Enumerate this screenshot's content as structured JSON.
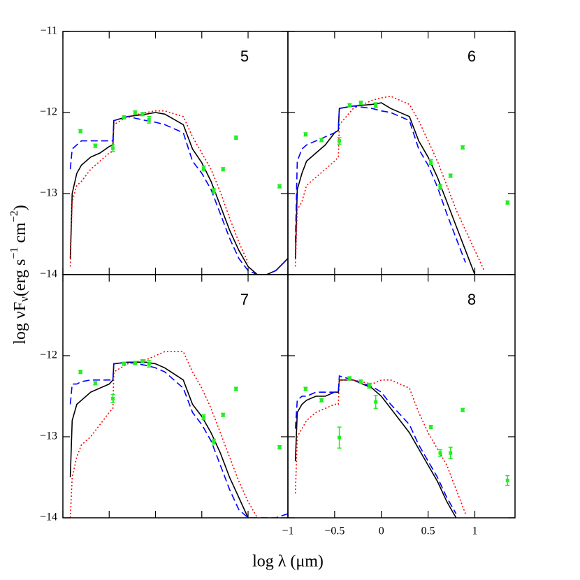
{
  "xlabel": "log λ (μm)",
  "ylabel": [
    "log νF",
    "ν",
    "(erg s",
    "−1",
    " cm",
    "−2",
    ")"
  ],
  "chart_data": [
    {
      "type": "line",
      "label": "5",
      "xlim": [
        -1,
        1.43
      ],
      "ylim": [
        -14,
        -11
      ],
      "xticks": [
        -1,
        -0.5,
        0,
        0.5,
        1
      ],
      "show_xtick_labels": false,
      "show_ytick_labels": true,
      "yticks": [
        {
          "value": -11,
          "label": "−11"
        },
        {
          "value": -12,
          "label": "−12"
        },
        {
          "value": -13,
          "label": "−13"
        },
        {
          "value": -14,
          "label": "−14"
        }
      ],
      "x": [
        -0.92,
        -0.9,
        -0.85,
        -0.8,
        -0.7,
        -0.6,
        -0.5,
        -0.46,
        -0.45,
        -0.3,
        -0.1,
        0,
        0.1,
        0.3,
        0.4,
        0.5,
        0.6,
        0.7,
        0.8,
        0.9,
        1.0,
        1.1,
        1.2,
        1.3,
        1.43
      ],
      "series": [
        {
          "color": "#000000",
          "style": "solid",
          "values": [
            -13.8,
            -13.0,
            -12.75,
            -12.65,
            -12.55,
            -12.5,
            -12.42,
            -12.4,
            -12.1,
            -12.05,
            -12.02,
            -12.0,
            -12.02,
            -12.15,
            -12.45,
            -12.62,
            -12.85,
            -13.15,
            -13.45,
            -13.7,
            -13.9,
            -14.0,
            -14.0,
            -13.95,
            -13.8
          ]
        },
        {
          "color": "#ff0000",
          "style": "dotted",
          "values": [
            -13.9,
            -13.1,
            -12.9,
            -12.85,
            -12.7,
            -12.6,
            -12.5,
            -12.48,
            -12.15,
            -12.05,
            -12.0,
            -11.98,
            -11.98,
            -12.05,
            -12.3,
            -12.5,
            -12.7,
            -12.98,
            -13.3,
            -13.6,
            -13.85,
            null,
            null,
            null,
            null
          ]
        },
        {
          "color": "#0000ff",
          "style": "dashed",
          "values": [
            -12.7,
            -12.45,
            -12.4,
            -12.35,
            -12.35,
            -12.35,
            -12.35,
            -12.35,
            -12.1,
            -12.05,
            -12.1,
            -12.12,
            -12.15,
            -12.25,
            -12.6,
            -12.75,
            -12.95,
            -13.25,
            -13.55,
            -13.8,
            -13.95,
            -14.0,
            -14.0,
            -13.95,
            -13.8
          ]
        }
      ],
      "points": {
        "color": "#22ee22",
        "x": [
          -0.81,
          -0.65,
          -0.46,
          -0.34,
          -0.22,
          -0.14,
          -0.07,
          0.52,
          0.63,
          0.73,
          0.87,
          1.34
        ],
        "values": [
          -12.23,
          -12.41,
          -12.44,
          -12.06,
          -12.0,
          -12.02,
          -12.09,
          -12.69,
          -12.97,
          -12.7,
          -12.31,
          -12.91
        ],
        "errors": [
          0.02,
          0.02,
          0.04,
          0.02,
          0.02,
          0.02,
          0.04,
          0.03,
          0.03,
          0.02,
          0.02,
          0.02
        ]
      }
    },
    {
      "type": "line",
      "label": "6",
      "xlim": [
        -1,
        1.43
      ],
      "ylim": [
        -14,
        -11
      ],
      "xticks": [
        -1,
        -0.5,
        0,
        0.5,
        1
      ],
      "show_xtick_labels": false,
      "show_ytick_labels": false,
      "yticks": [
        -11,
        -12,
        -13,
        -14
      ],
      "x": [
        -0.92,
        -0.9,
        -0.85,
        -0.8,
        -0.7,
        -0.6,
        -0.5,
        -0.46,
        -0.45,
        -0.3,
        -0.1,
        0,
        0.1,
        0.3,
        0.4,
        0.5,
        0.6,
        0.7,
        0.8,
        0.9,
        1.0,
        1.1,
        1.2,
        1.3,
        1.43
      ],
      "series": [
        {
          "color": "#000000",
          "style": "solid",
          "values": [
            -13.8,
            -12.95,
            -12.75,
            -12.6,
            -12.5,
            -12.4,
            -12.25,
            -12.22,
            -11.95,
            -11.92,
            -11.9,
            -11.88,
            -11.95,
            -12.05,
            -12.35,
            -12.55,
            -12.8,
            -13.1,
            -13.4,
            -13.7,
            -14.0,
            null,
            null,
            null,
            null
          ]
        },
        {
          "color": "#ff0000",
          "style": "dotted",
          "values": [
            -13.9,
            -13.2,
            -13.1,
            -12.9,
            -12.8,
            -12.7,
            -12.6,
            -12.55,
            -12.15,
            -11.95,
            -11.85,
            -11.82,
            -11.8,
            -11.9,
            -12.1,
            -12.35,
            -12.6,
            -12.9,
            -13.2,
            -13.45,
            -13.7,
            -13.95,
            null,
            null,
            null
          ]
        },
        {
          "color": "#0000ff",
          "style": "dashed",
          "values": [
            -13.6,
            -12.6,
            -12.45,
            -12.4,
            -12.35,
            -12.3,
            -12.25,
            -12.2,
            -11.95,
            -11.92,
            -11.95,
            -11.98,
            -12.0,
            -12.1,
            -12.45,
            -12.65,
            -12.92,
            -13.25,
            -13.55,
            -13.85,
            null,
            null,
            null,
            null,
            null
          ]
        }
      ],
      "points": {
        "color": "#22ee22",
        "x": [
          -0.81,
          -0.64,
          -0.45,
          -0.34,
          -0.22,
          -0.06,
          0.53,
          0.63,
          0.74,
          0.87,
          1.35
        ],
        "values": [
          -12.27,
          -12.34,
          -12.35,
          -11.91,
          -11.88,
          -11.91,
          -12.61,
          -12.92,
          -12.78,
          -12.43,
          -13.11
        ],
        "errors": [
          0.02,
          0.02,
          0.04,
          0.02,
          0.02,
          0.03,
          0.03,
          0.03,
          0.02,
          0.02,
          0.02
        ]
      }
    },
    {
      "type": "line",
      "label": "7",
      "xlim": [
        -1,
        1.43
      ],
      "ylim": [
        -14,
        -11
      ],
      "xticks": [
        -1,
        -0.5,
        0,
        0.5,
        1
      ],
      "show_xtick_labels": false,
      "show_ytick_labels": true,
      "yticks": [
        {
          "value": -12,
          "label": "−12"
        },
        {
          "value": -13,
          "label": "−13"
        },
        {
          "value": -14,
          "label": "−14"
        }
      ],
      "x": [
        -0.92,
        -0.9,
        -0.85,
        -0.8,
        -0.7,
        -0.6,
        -0.5,
        -0.46,
        -0.45,
        -0.3,
        -0.1,
        0,
        0.1,
        0.3,
        0.4,
        0.5,
        0.6,
        0.7,
        0.8,
        0.9,
        1.0,
        1.1,
        1.2,
        1.3,
        1.43
      ],
      "series": [
        {
          "color": "#000000",
          "style": "solid",
          "values": [
            -13.5,
            -12.8,
            -12.6,
            -12.55,
            -12.45,
            -12.4,
            -12.35,
            -12.3,
            -12.1,
            -12.08,
            -12.08,
            -12.1,
            -12.15,
            -12.3,
            -12.6,
            -12.75,
            -12.95,
            -13.2,
            -13.5,
            -13.75,
            -14.0,
            null,
            null,
            null,
            null
          ]
        },
        {
          "color": "#ff0000",
          "style": "dotted",
          "values": [
            -14.0,
            -13.5,
            -13.25,
            -13.1,
            -13.0,
            -12.85,
            -12.7,
            -12.65,
            -12.2,
            -12.1,
            -12.05,
            -12.0,
            -11.95,
            -11.95,
            -12.2,
            -12.4,
            -12.65,
            -12.95,
            -13.25,
            -13.55,
            -13.8,
            -14.0,
            null,
            null,
            null
          ]
        },
        {
          "color": "#0000ff",
          "style": "dashed",
          "values": [
            -12.6,
            -12.35,
            -12.35,
            -12.32,
            -12.3,
            -12.3,
            -12.3,
            -12.3,
            -12.1,
            -12.08,
            -12.12,
            -12.15,
            -12.2,
            -12.4,
            -12.7,
            -12.85,
            -13.05,
            -13.35,
            -13.65,
            -13.9,
            -14.0,
            -14.0,
            -14.0,
            -14.0,
            -13.95
          ]
        }
      ],
      "points": {
        "color": "#22ee22",
        "x": [
          -0.81,
          -0.65,
          -0.46,
          -0.34,
          -0.22,
          -0.14,
          -0.07,
          0.52,
          0.63,
          0.73,
          0.87,
          1.34
        ],
        "values": [
          -12.2,
          -12.34,
          -12.53,
          -12.1,
          -12.09,
          -12.07,
          -12.1,
          -12.76,
          -13.06,
          -12.73,
          -12.41,
          -13.13
        ],
        "errors": [
          0.02,
          0.02,
          0.05,
          0.02,
          0.02,
          0.02,
          0.04,
          0.03,
          0.03,
          0.02,
          0.02,
          0.02
        ]
      }
    },
    {
      "type": "line",
      "label": "8",
      "xlim": [
        -1,
        1.43
      ],
      "ylim": [
        -14,
        -11
      ],
      "xticks": [
        {
          "value": -1,
          "label": "−1"
        },
        {
          "value": -0.5,
          "label": "−0.5"
        },
        0,
        0.5,
        1
      ],
      "show_xtick_labels": true,
      "show_ytick_labels": false,
      "yticks": [
        -11,
        -12,
        -13,
        -14
      ],
      "x": [
        -0.92,
        -0.9,
        -0.85,
        -0.8,
        -0.7,
        -0.6,
        -0.5,
        -0.46,
        -0.45,
        -0.3,
        -0.1,
        0,
        0.1,
        0.3,
        0.4,
        0.5,
        0.6,
        0.7,
        0.8,
        0.9,
        1.0,
        1.1,
        1.2,
        1.3,
        1.43
      ],
      "series": [
        {
          "color": "#000000",
          "style": "solid",
          "values": [
            -13.3,
            -12.7,
            -12.6,
            -12.55,
            -12.5,
            -12.5,
            -12.45,
            -12.45,
            -12.3,
            -12.3,
            -12.4,
            -12.5,
            -12.65,
            -12.95,
            -13.15,
            -13.35,
            -13.55,
            -13.8,
            -14.0,
            null,
            null,
            null,
            null,
            null,
            null
          ]
        },
        {
          "color": "#ff0000",
          "style": "dotted",
          "values": [
            -13.7,
            -13.0,
            -12.9,
            -12.8,
            -12.7,
            -12.65,
            -12.6,
            -12.6,
            -12.3,
            -12.3,
            -12.35,
            -12.3,
            -12.3,
            -12.4,
            -12.7,
            -12.95,
            -13.15,
            -13.35,
            -13.65,
            -13.95,
            null,
            null,
            null,
            null,
            null
          ]
        },
        {
          "color": "#0000ff",
          "style": "dashed",
          "values": [
            -12.9,
            -12.55,
            -12.5,
            -12.5,
            -12.45,
            -12.45,
            -12.45,
            -12.45,
            -12.25,
            -12.3,
            -12.38,
            -12.45,
            -12.6,
            -12.85,
            -13.1,
            -13.3,
            -13.5,
            -13.75,
            -13.95,
            null,
            null,
            null,
            null,
            null,
            null
          ]
        }
      ],
      "points": {
        "color": "#22ee22",
        "x": [
          -0.81,
          -0.64,
          -0.45,
          -0.34,
          -0.22,
          -0.13,
          -0.06,
          0.53,
          0.63,
          0.74,
          0.87,
          1.35
        ],
        "values": [
          -12.41,
          -12.55,
          -13.01,
          -12.28,
          -12.32,
          -12.37,
          -12.57,
          -12.88,
          -13.2,
          -13.2,
          -12.67,
          -13.54
        ],
        "errors": [
          0.02,
          0.02,
          0.13,
          0.02,
          0.02,
          0.03,
          0.08,
          0.02,
          0.04,
          0.07,
          0.02,
          0.06
        ]
      }
    }
  ]
}
